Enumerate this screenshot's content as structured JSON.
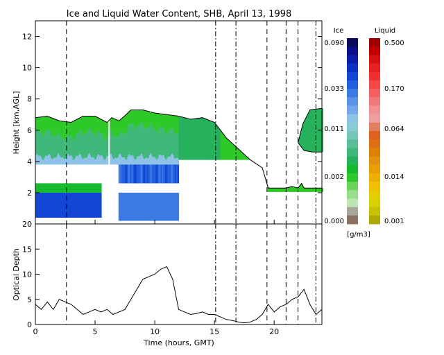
{
  "chart_data": [
    {
      "type": "heatmap",
      "title": "Ice and Liquid Water Content, SHB, April 13, 1998",
      "ylabel": "Height [km,AGL]",
      "xlim": [
        0,
        24
      ],
      "ylim": [
        0,
        13
      ],
      "yticks": [
        2,
        4,
        6,
        8,
        10,
        12
      ],
      "legend_ice_title": "Ice",
      "legend_liquid_title": "Liquid",
      "legend_unit": "[g/m3]",
      "ice_scale_labels": [
        "0.090",
        "0.033",
        "0.011",
        "0.002",
        "0.000"
      ],
      "liquid_scale_labels": [
        "0.500",
        "0.170",
        "0.064",
        "0.014",
        "0.001"
      ],
      "ice_colors": [
        "#0a0a5a",
        "#0b0e86",
        "#0c1ea8",
        "#0f30c4",
        "#1446d6",
        "#2260e0",
        "#3c7ae4",
        "#5a92e8",
        "#78a8ec",
        "#8ec2e8",
        "#88ccd6",
        "#78c8b8",
        "#5cbe98",
        "#40b87a",
        "#26b25c",
        "#16ba2e",
        "#2ec828",
        "#6ad45a",
        "#98de8c",
        "#bde6b2",
        "#a8a89a",
        "#8a7060"
      ],
      "liquid_colors": [
        "#a00000",
        "#c00000",
        "#d81010",
        "#e82020",
        "#f03030",
        "#f44848",
        "#f06060",
        "#f07878",
        "#f09090",
        "#eea0a0",
        "#e08060",
        "#e06020",
        "#e07018",
        "#e08000",
        "#e49010",
        "#e8a000",
        "#ecb000",
        "#f0c000",
        "#e6cc00",
        "#d8d000",
        "#c8c000",
        "#b0a800"
      ],
      "vlines_dashed": [
        2.6,
        19.4,
        21.0,
        22.0
      ],
      "vlines_dashdot": [
        15.1,
        16.8,
        23.5
      ],
      "cloud_top": [
        [
          0,
          6.8
        ],
        [
          1,
          6.9
        ],
        [
          2,
          6.6
        ],
        [
          3,
          6.5
        ],
        [
          4,
          6.9
        ],
        [
          5,
          6.9
        ],
        [
          6,
          6.5
        ],
        [
          6.4,
          6.8
        ],
        [
          7,
          6.6
        ],
        [
          7.6,
          7.0
        ],
        [
          8,
          7.3
        ],
        [
          9,
          7.3
        ],
        [
          10,
          7.1
        ],
        [
          11,
          7.0
        ],
        [
          12,
          6.9
        ],
        [
          13,
          6.7
        ],
        [
          14,
          6.8
        ],
        [
          15,
          6.5
        ],
        [
          16,
          5.5
        ],
        [
          17,
          4.8
        ],
        [
          18,
          4.1
        ],
        [
          19,
          3.6
        ],
        [
          19.5,
          2.3
        ],
        [
          21,
          2.3
        ],
        [
          21.5,
          2.4
        ],
        [
          22,
          2.3
        ],
        [
          22.3,
          2.6
        ],
        [
          22.5,
          2.3
        ],
        [
          23,
          2.3
        ],
        [
          24,
          2.3
        ]
      ],
      "upper_cloud_top": [
        [
          22.0,
          5.2
        ],
        [
          22.4,
          6.4
        ],
        [
          23,
          7.3
        ],
        [
          24,
          7.4
        ]
      ],
      "upper_cloud_base": [
        [
          22.0,
          5.2
        ],
        [
          22.5,
          4.7
        ],
        [
          23.2,
          4.6
        ],
        [
          24,
          4.6
        ]
      ],
      "missing_data_region": {
        "x_start": 12.0,
        "x_end": 24,
        "y_top": 4.1
      }
    },
    {
      "type": "line",
      "xlabel": "Time (hours, GMT)",
      "ylabel": "Optical Depth",
      "xlim": [
        0,
        24
      ],
      "ylim": [
        0,
        20
      ],
      "xticks": [
        0,
        5,
        10,
        15,
        20
      ],
      "yticks": [
        0,
        5,
        10,
        15,
        20
      ],
      "x": [
        0,
        0.5,
        1,
        1.5,
        2,
        2.5,
        3,
        3.5,
        4,
        4.5,
        5,
        5.5,
        6,
        6.5,
        7,
        7.5,
        8,
        8.5,
        9,
        9.5,
        10,
        10.5,
        11,
        11.5,
        12,
        12.5,
        13,
        13.5,
        14,
        14.5,
        15,
        15.5,
        16,
        16.5,
        17,
        17.5,
        18,
        18.5,
        19,
        19.5,
        20,
        20.5,
        21,
        21.5,
        22,
        22.5,
        23,
        23.5,
        24
      ],
      "y": [
        4,
        3,
        4.5,
        3,
        5,
        4.5,
        4,
        3,
        2,
        2.5,
        3,
        2.5,
        3,
        2,
        2.5,
        3,
        5,
        7,
        9,
        9.5,
        10,
        11,
        11.5,
        9,
        3,
        2.5,
        2,
        2.2,
        2.5,
        2,
        2,
        1.5,
        1,
        0.8,
        0.5,
        0.3,
        0.5,
        1,
        2,
        4,
        2.5,
        3.5,
        4,
        5,
        5.5,
        7,
        4,
        2,
        3
      ]
    }
  ]
}
